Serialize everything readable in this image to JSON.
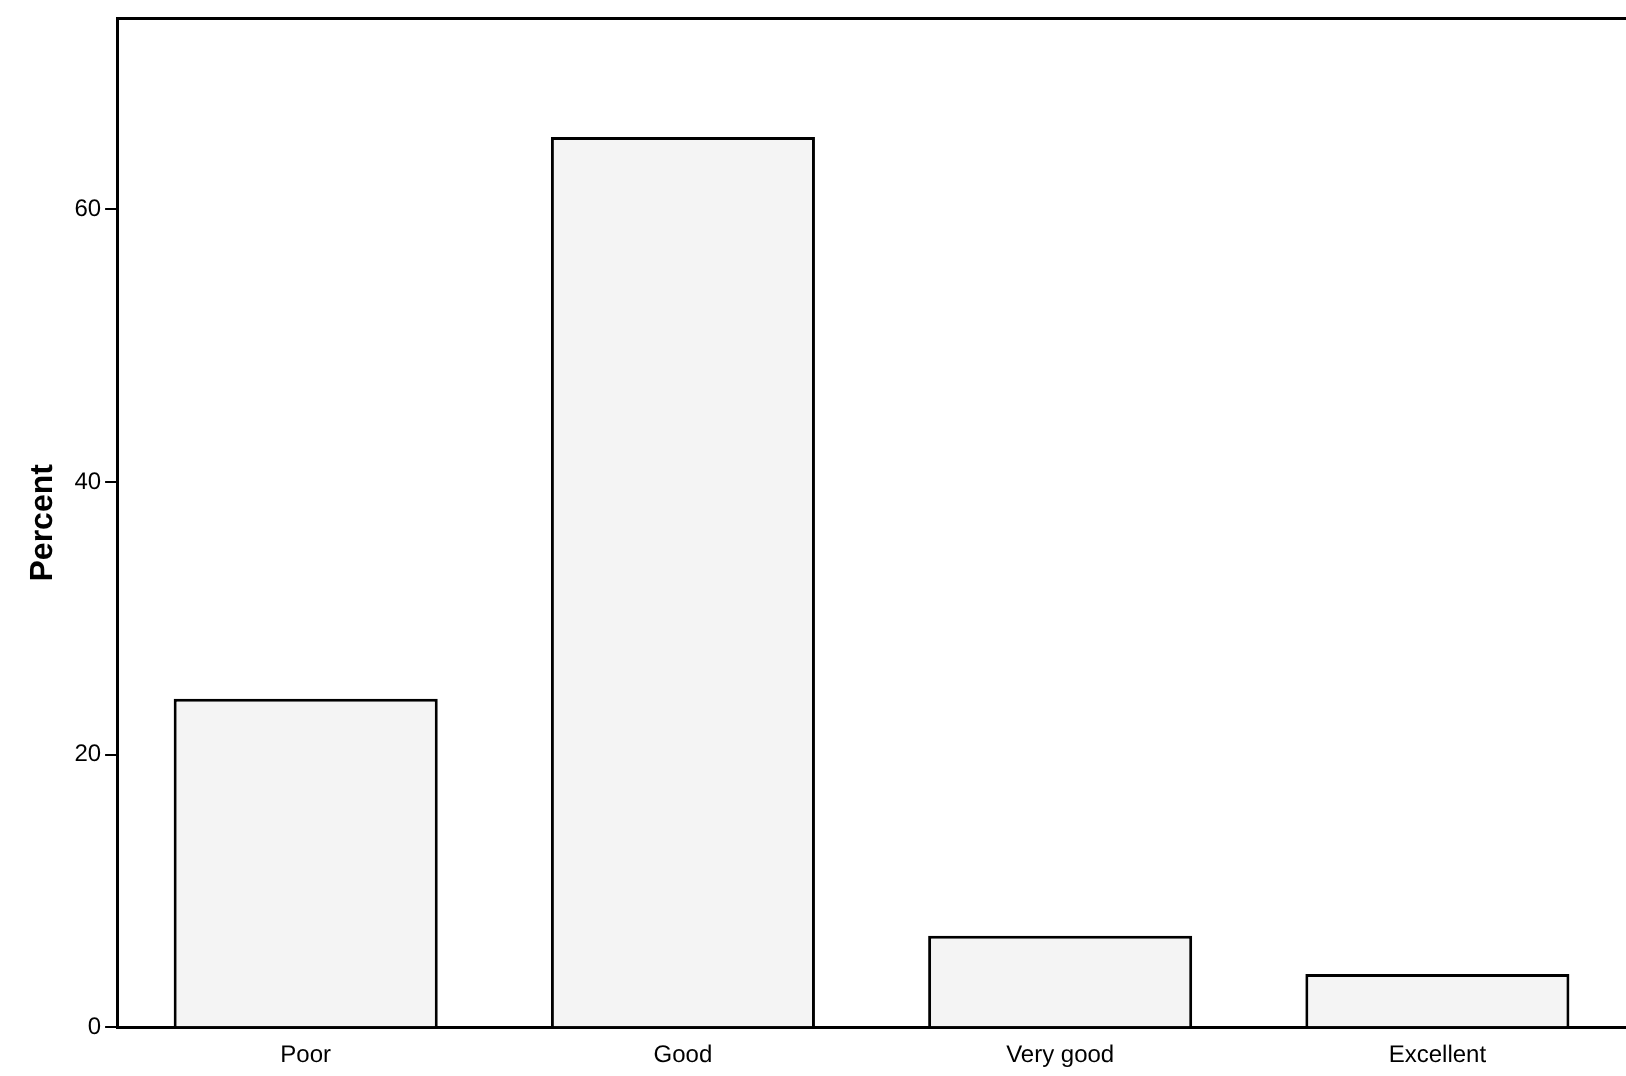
{
  "chart_data": {
    "type": "bar",
    "ylabel": "Percent",
    "categories": [
      "Poor",
      "Good",
      "Very good",
      "Excellent"
    ],
    "values": [
      24.1,
      65.3,
      6.7,
      3.9
    ],
    "color": "#f4f4f4",
    "ylim": [
      0,
      74
    ],
    "yticks": [
      0,
      20,
      40,
      60
    ],
    "grid": false,
    "legend": false
  }
}
